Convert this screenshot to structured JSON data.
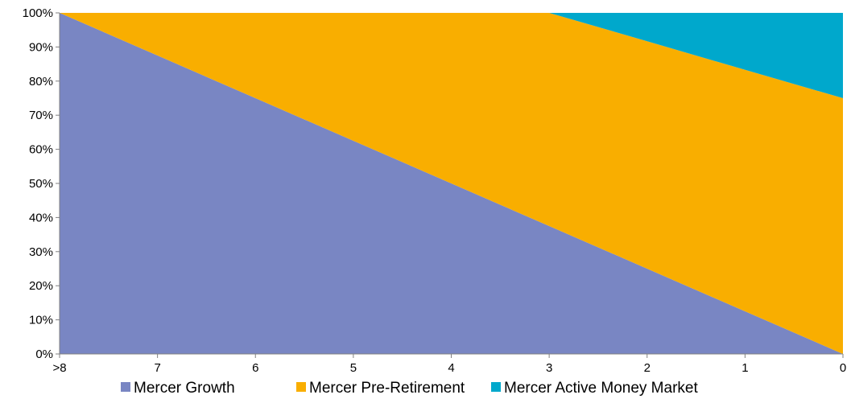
{
  "chart_data": {
    "type": "area",
    "stacked": true,
    "categories": [
      ">8",
      "7",
      "6",
      "5",
      "4",
      "3",
      "2",
      "1",
      "0"
    ],
    "series": [
      {
        "name": "Mercer Growth",
        "color": "#7986C3",
        "values": [
          100,
          87.5,
          75,
          62.5,
          50,
          37.5,
          25,
          12.5,
          0
        ]
      },
      {
        "name": "Mercer Pre-Retirement",
        "color": "#F9AE00",
        "values": [
          0,
          12.5,
          25,
          37.5,
          50,
          62.5,
          66.7,
          70.8,
          75
        ]
      },
      {
        "name": "Mercer Active Money Market",
        "color": "#00A8CC",
        "values": [
          0,
          0,
          0,
          0,
          0,
          0,
          8.3,
          16.7,
          25
        ]
      }
    ],
    "y_ticks": [
      "0%",
      "10%",
      "20%",
      "30%",
      "40%",
      "50%",
      "60%",
      "70%",
      "80%",
      "90%",
      "100%"
    ],
    "ylim": [
      0,
      100
    ],
    "grid": false,
    "legend_position": "bottom"
  }
}
